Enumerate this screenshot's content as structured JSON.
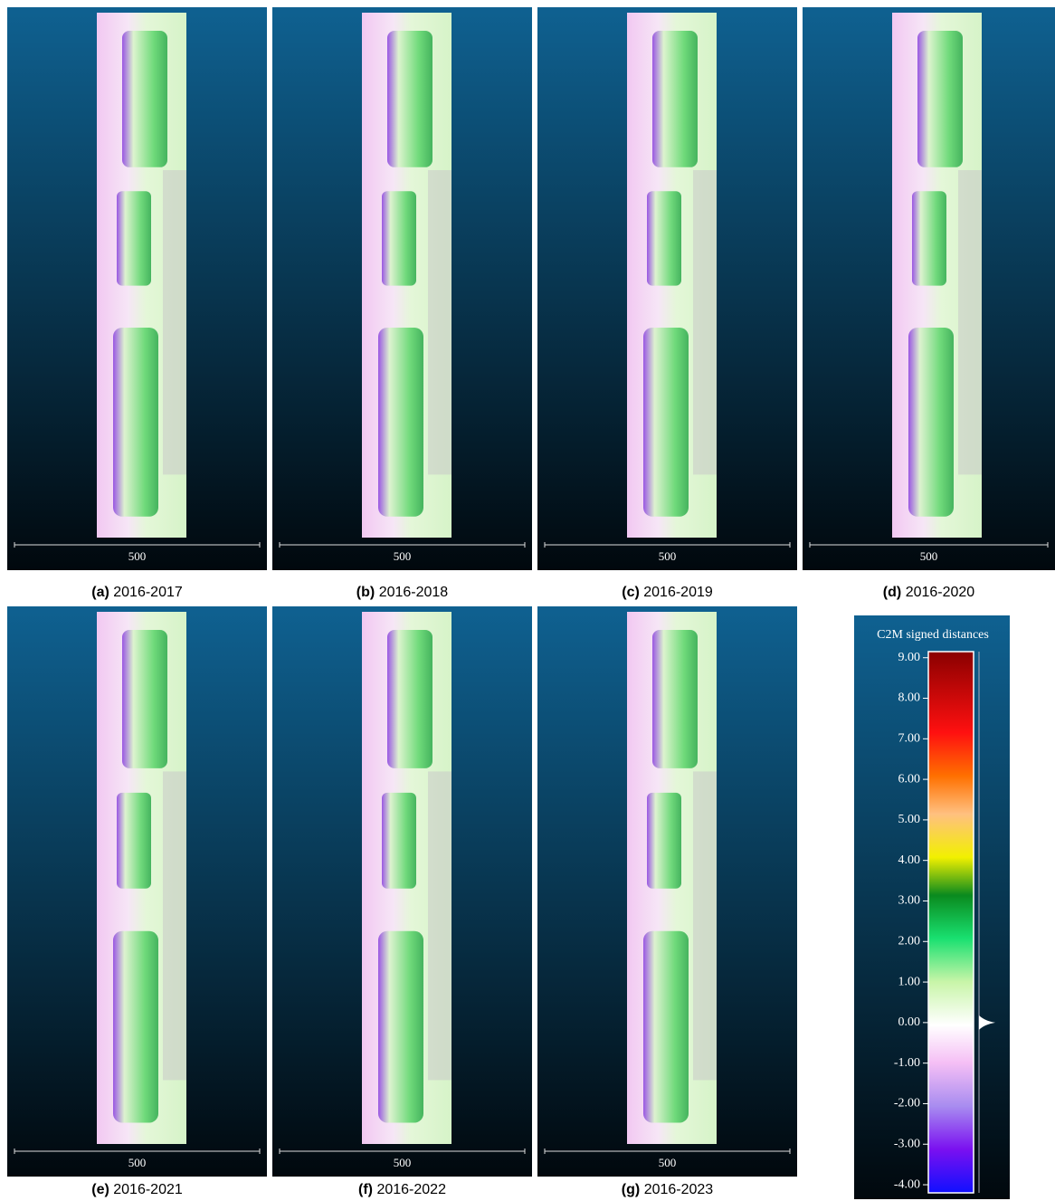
{
  "panels": [
    {
      "label": "(a)",
      "caption": "2016-2017",
      "scale": "500"
    },
    {
      "label": "(b)",
      "caption": "2016-2018",
      "scale": "500"
    },
    {
      "label": "(c)",
      "caption": "2016-2019",
      "scale": "500"
    },
    {
      "label": "(d)",
      "caption": "2016-2020",
      "scale": "500"
    },
    {
      "label": "(e)",
      "caption": "2016-2021",
      "scale": "500"
    },
    {
      "label": "(f)",
      "caption": "2016-2022",
      "scale": "500"
    },
    {
      "label": "(g)",
      "caption": "2016-2023",
      "scale": "500"
    }
  ],
  "colorbar": {
    "title": "C2M signed distances",
    "lim": [
      -4.2,
      9.15
    ],
    "ticks": [
      {
        "value": 9,
        "label": "9.00"
      },
      {
        "value": 8,
        "label": "8.00"
      },
      {
        "value": 7,
        "label": "7.00"
      },
      {
        "value": 6,
        "label": "6.00"
      },
      {
        "value": 5,
        "label": "5.00"
      },
      {
        "value": 4,
        "label": "4.00"
      },
      {
        "value": 3,
        "label": "3.00"
      },
      {
        "value": 2,
        "label": "2.00"
      },
      {
        "value": 1,
        "label": "1.00"
      },
      {
        "value": 0,
        "label": "0.00"
      },
      {
        "value": -1,
        "label": "-1.00"
      },
      {
        "value": -2,
        "label": "-2.00"
      },
      {
        "value": -3,
        "label": "-3.00"
      },
      {
        "value": -4,
        "label": "-4.00"
      }
    ]
  }
}
